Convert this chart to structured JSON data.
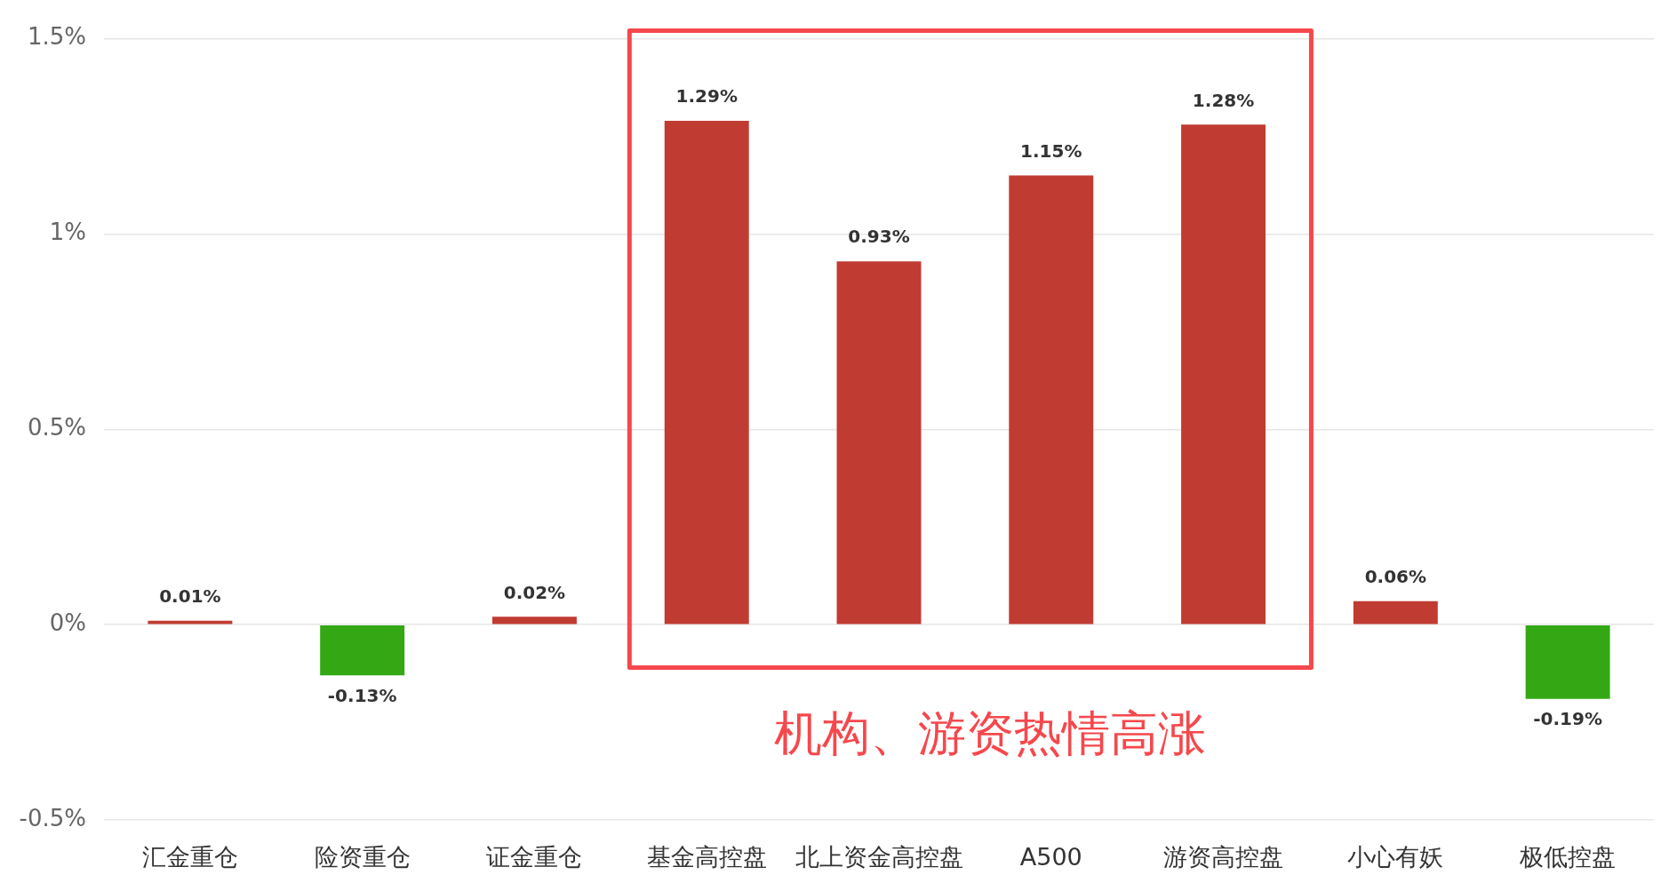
{
  "chart_data": {
    "type": "bar",
    "categories": [
      "汇金重仓",
      "险资重仓",
      "证金重仓",
      "基金高控盘",
      "北上资金高控盘",
      "A500",
      "游资高控盘",
      "小心有妖",
      "极低控盘"
    ],
    "values": [
      0.01,
      -0.13,
      0.02,
      1.29,
      0.93,
      1.15,
      1.28,
      0.06,
      -0.19
    ],
    "value_labels": [
      "0.01%",
      "-0.13%",
      "0.02%",
      "1.29%",
      "0.93%",
      "1.15%",
      "1.28%",
      "0.06%",
      "-0.19%"
    ],
    "colors": [
      "#c03b32",
      "#33a814",
      "#c03b32",
      "#c03b32",
      "#c03b32",
      "#c03b32",
      "#c03b32",
      "#c03b32",
      "#33a814"
    ],
    "ylim": [
      -0.5,
      1.5
    ],
    "yticks": [
      {
        "value": -0.5,
        "label": "-0.5%"
      },
      {
        "value": 0,
        "label": "0%"
      },
      {
        "value": 0.5,
        "label": "0.5%"
      },
      {
        "value": 1,
        "label": "1%"
      },
      {
        "value": 1.5,
        "label": "1.5%"
      }
    ],
    "grid": "y",
    "annotations": [
      "机构、游资热情高涨"
    ]
  }
}
